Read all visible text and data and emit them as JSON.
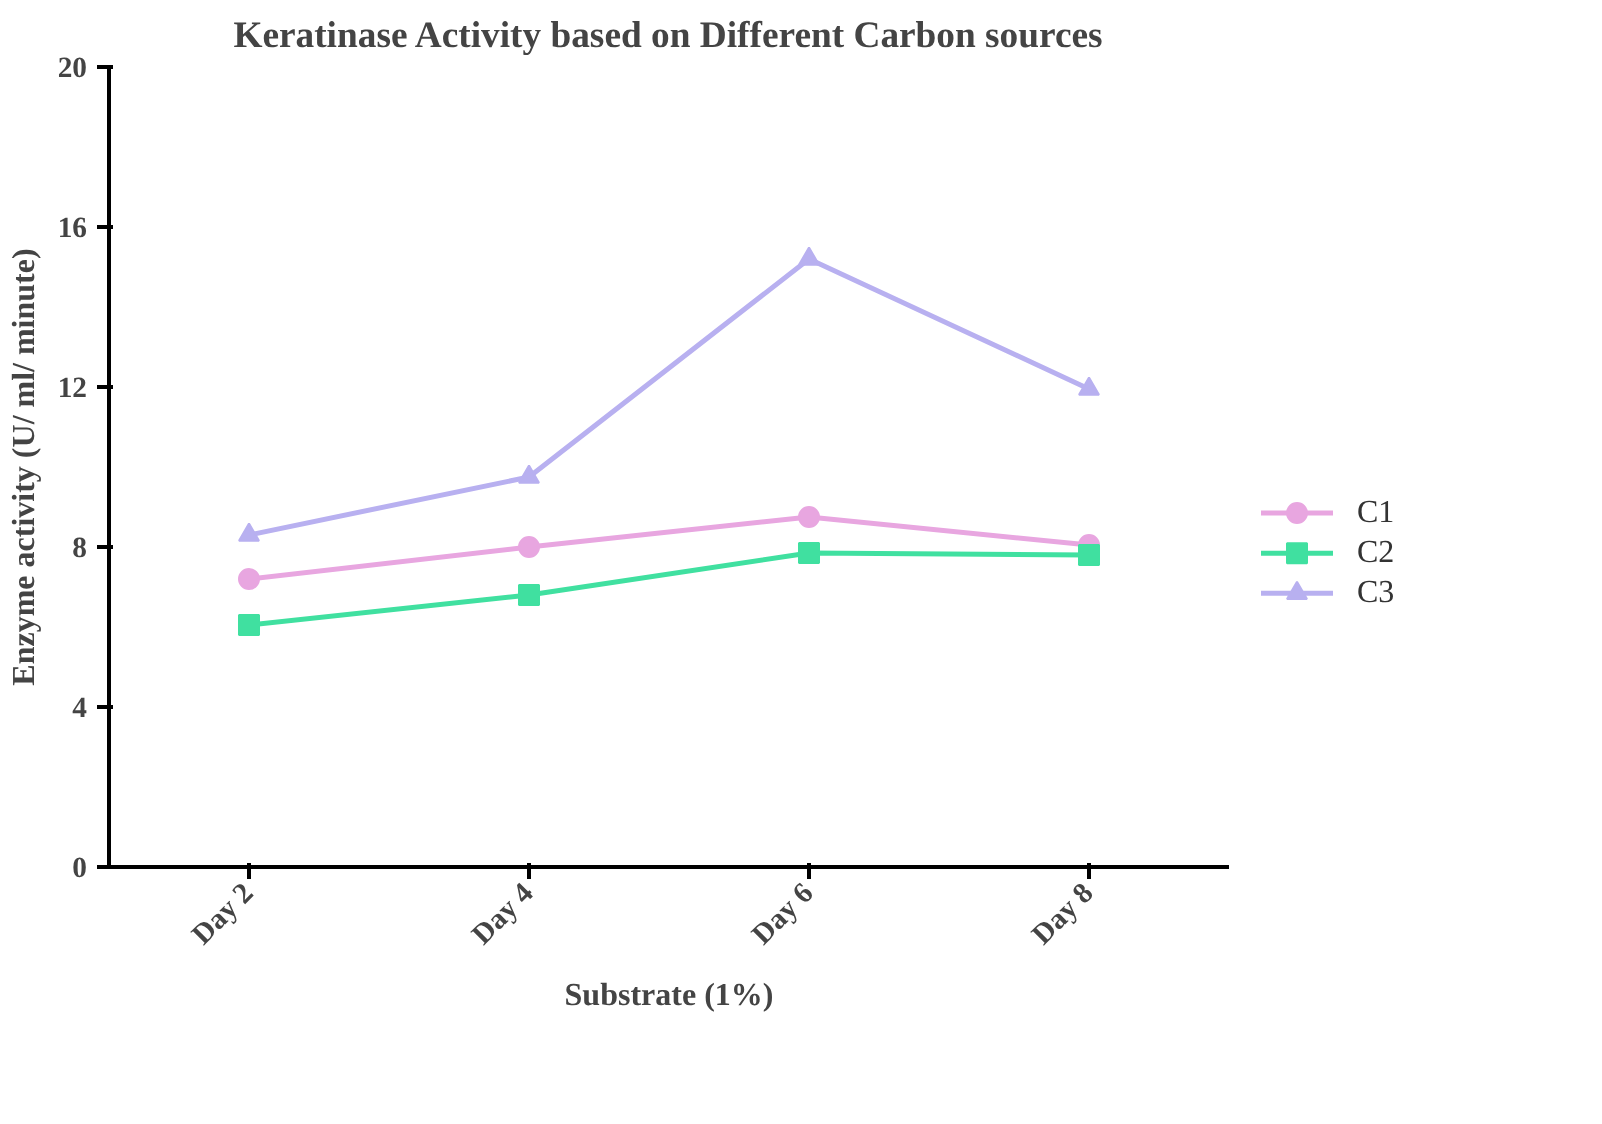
{
  "chart_data": {
    "type": "line",
    "title": "Keratinase Activity based on Different Carbon sources",
    "xlabel": "Substrate (1%)",
    "ylabel": "Enzyme activity (U/ ml/ minute)",
    "categories": [
      "Day 2",
      "Day 4",
      "Day 6",
      "Day 8"
    ],
    "ylim": [
      0,
      20
    ],
    "yticks": [
      0,
      4,
      8,
      12,
      16,
      20
    ],
    "grid": false,
    "legend": "right",
    "series": [
      {
        "name": "C1",
        "color": "#e8a6e0",
        "marker": "circle",
        "values": [
          7.2,
          8.0,
          8.75,
          8.05
        ]
      },
      {
        "name": "C2",
        "color": "#40e0a0",
        "marker": "square",
        "values": [
          6.05,
          6.8,
          7.85,
          7.8
        ]
      },
      {
        "name": "C3",
        "color": "#b8b0f0",
        "marker": "triangle",
        "values": [
          8.3,
          9.75,
          15.2,
          11.95
        ]
      }
    ]
  }
}
